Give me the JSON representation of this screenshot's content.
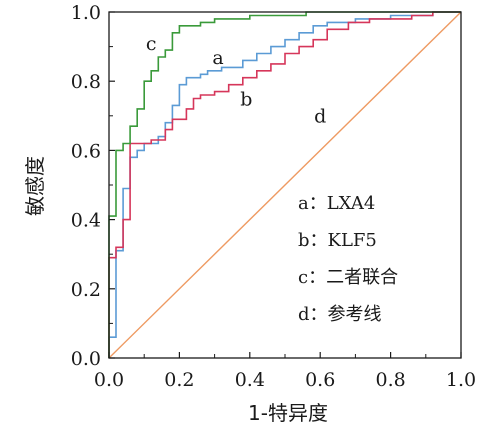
{
  "chart_data": {
    "type": "line",
    "xlabel": "1-特异度",
    "ylabel": "敏感度",
    "xlim": [
      0,
      1
    ],
    "ylim": [
      0,
      1
    ],
    "grid": false,
    "legend_placement": "center-right",
    "x_ticks": [
      "0.0",
      "0.2",
      "0.4",
      "0.6",
      "0.8",
      "1.0"
    ],
    "y_ticks": [
      "0.0",
      "0.2",
      "0.4",
      "0.6",
      "0.8",
      "1.0"
    ],
    "legend": [
      {
        "text": "a：LXA4"
      },
      {
        "text": "b：KLF5"
      },
      {
        "text": "c：二者联合"
      },
      {
        "text": "d：参考线"
      }
    ],
    "series": [
      {
        "name": "a",
        "color": "#5b9bd5",
        "label_at": [
          0.31,
          0.85
        ],
        "points": [
          [
            0,
            0
          ],
          [
            0,
            0.06
          ],
          [
            0.02,
            0.06
          ],
          [
            0.02,
            0.31
          ],
          [
            0.04,
            0.31
          ],
          [
            0.04,
            0.49
          ],
          [
            0.06,
            0.49
          ],
          [
            0.06,
            0.58
          ],
          [
            0.08,
            0.58
          ],
          [
            0.08,
            0.6
          ],
          [
            0.1,
            0.6
          ],
          [
            0.1,
            0.62
          ],
          [
            0.14,
            0.62
          ],
          [
            0.14,
            0.64
          ],
          [
            0.16,
            0.64
          ],
          [
            0.16,
            0.68
          ],
          [
            0.18,
            0.68
          ],
          [
            0.18,
            0.73
          ],
          [
            0.2,
            0.73
          ],
          [
            0.2,
            0.79
          ],
          [
            0.22,
            0.79
          ],
          [
            0.22,
            0.81
          ],
          [
            0.26,
            0.81
          ],
          [
            0.26,
            0.82
          ],
          [
            0.28,
            0.82
          ],
          [
            0.28,
            0.83
          ],
          [
            0.32,
            0.83
          ],
          [
            0.32,
            0.84
          ],
          [
            0.38,
            0.84
          ],
          [
            0.38,
            0.86
          ],
          [
            0.42,
            0.86
          ],
          [
            0.42,
            0.88
          ],
          [
            0.46,
            0.88
          ],
          [
            0.46,
            0.9
          ],
          [
            0.5,
            0.9
          ],
          [
            0.5,
            0.92
          ],
          [
            0.54,
            0.92
          ],
          [
            0.54,
            0.94
          ],
          [
            0.58,
            0.94
          ],
          [
            0.58,
            0.96
          ],
          [
            0.62,
            0.96
          ],
          [
            0.62,
            0.97
          ],
          [
            0.7,
            0.97
          ],
          [
            0.7,
            0.98
          ],
          [
            0.8,
            0.98
          ],
          [
            0.8,
            0.99
          ],
          [
            0.92,
            0.99
          ],
          [
            0.92,
            1
          ],
          [
            1,
            1
          ]
        ]
      },
      {
        "name": "b",
        "color": "#d6365a",
        "label_at": [
          0.39,
          0.73
        ],
        "points": [
          [
            0,
            0
          ],
          [
            0,
            0.29
          ],
          [
            0.02,
            0.29
          ],
          [
            0.02,
            0.32
          ],
          [
            0.04,
            0.32
          ],
          [
            0.04,
            0.4
          ],
          [
            0.06,
            0.4
          ],
          [
            0.06,
            0.62
          ],
          [
            0.12,
            0.62
          ],
          [
            0.12,
            0.63
          ],
          [
            0.16,
            0.63
          ],
          [
            0.16,
            0.66
          ],
          [
            0.18,
            0.66
          ],
          [
            0.18,
            0.69
          ],
          [
            0.22,
            0.69
          ],
          [
            0.22,
            0.72
          ],
          [
            0.24,
            0.72
          ],
          [
            0.24,
            0.75
          ],
          [
            0.26,
            0.75
          ],
          [
            0.26,
            0.76
          ],
          [
            0.3,
            0.76
          ],
          [
            0.3,
            0.77
          ],
          [
            0.34,
            0.77
          ],
          [
            0.34,
            0.79
          ],
          [
            0.38,
            0.79
          ],
          [
            0.38,
            0.81
          ],
          [
            0.42,
            0.81
          ],
          [
            0.42,
            0.83
          ],
          [
            0.46,
            0.83
          ],
          [
            0.46,
            0.85
          ],
          [
            0.5,
            0.85
          ],
          [
            0.5,
            0.88
          ],
          [
            0.54,
            0.88
          ],
          [
            0.54,
            0.9
          ],
          [
            0.58,
            0.9
          ],
          [
            0.58,
            0.92
          ],
          [
            0.62,
            0.92
          ],
          [
            0.62,
            0.95
          ],
          [
            0.68,
            0.95
          ],
          [
            0.68,
            0.97
          ],
          [
            0.74,
            0.97
          ],
          [
            0.74,
            0.98
          ],
          [
            0.86,
            0.98
          ],
          [
            0.86,
            0.99
          ],
          [
            0.92,
            0.99
          ],
          [
            0.92,
            1
          ],
          [
            1,
            1
          ]
        ]
      },
      {
        "name": "c",
        "color": "#3a9a3a",
        "label_at": [
          0.12,
          0.89
        ],
        "points": [
          [
            0,
            0
          ],
          [
            0,
            0.41
          ],
          [
            0.02,
            0.41
          ],
          [
            0.02,
            0.6
          ],
          [
            0.04,
            0.6
          ],
          [
            0.04,
            0.62
          ],
          [
            0.06,
            0.62
          ],
          [
            0.06,
            0.67
          ],
          [
            0.08,
            0.67
          ],
          [
            0.08,
            0.72
          ],
          [
            0.1,
            0.72
          ],
          [
            0.1,
            0.8
          ],
          [
            0.12,
            0.8
          ],
          [
            0.12,
            0.83
          ],
          [
            0.14,
            0.83
          ],
          [
            0.14,
            0.87
          ],
          [
            0.16,
            0.87
          ],
          [
            0.16,
            0.89
          ],
          [
            0.18,
            0.89
          ],
          [
            0.18,
            0.94
          ],
          [
            0.2,
            0.94
          ],
          [
            0.2,
            0.96
          ],
          [
            0.26,
            0.96
          ],
          [
            0.26,
            0.97
          ],
          [
            0.3,
            0.97
          ],
          [
            0.3,
            0.98
          ],
          [
            0.4,
            0.98
          ],
          [
            0.4,
            0.99
          ],
          [
            0.56,
            0.99
          ],
          [
            0.56,
            1
          ],
          [
            1,
            1
          ]
        ]
      },
      {
        "name": "d",
        "color": "#ee9a62",
        "label_at": [
          0.6,
          0.68
        ],
        "points": [
          [
            0,
            0
          ],
          [
            1,
            1
          ]
        ]
      }
    ]
  }
}
